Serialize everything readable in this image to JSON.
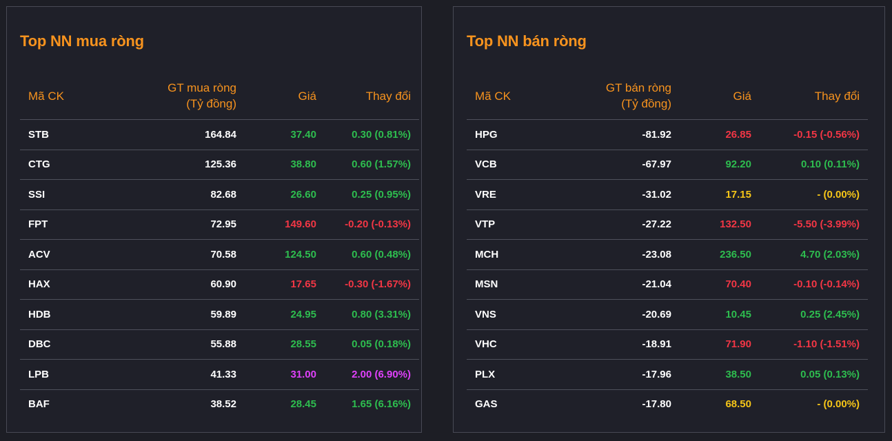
{
  "buy_panel": {
    "title": "Top NN mua ròng",
    "headers": {
      "code": "Mã CK",
      "value_line1": "GT mua ròng",
      "value_line2": "(Tỷ đồng)",
      "price": "Giá",
      "change": "Thay đổi"
    },
    "rows": [
      {
        "code": "STB",
        "value": "164.84",
        "price": "37.40",
        "change": "0.30 (0.81%)",
        "status": "up"
      },
      {
        "code": "CTG",
        "value": "125.36",
        "price": "38.80",
        "change": "0.60 (1.57%)",
        "status": "up"
      },
      {
        "code": "SSI",
        "value": "82.68",
        "price": "26.60",
        "change": "0.25 (0.95%)",
        "status": "up"
      },
      {
        "code": "FPT",
        "value": "72.95",
        "price": "149.60",
        "change": "-0.20 (-0.13%)",
        "status": "down"
      },
      {
        "code": "ACV",
        "value": "70.58",
        "price": "124.50",
        "change": "0.60 (0.48%)",
        "status": "up"
      },
      {
        "code": "HAX",
        "value": "60.90",
        "price": "17.65",
        "change": "-0.30 (-1.67%)",
        "status": "down"
      },
      {
        "code": "HDB",
        "value": "59.89",
        "price": "24.95",
        "change": "0.80 (3.31%)",
        "status": "up"
      },
      {
        "code": "DBC",
        "value": "55.88",
        "price": "28.55",
        "change": "0.05 (0.18%)",
        "status": "up"
      },
      {
        "code": "LPB",
        "value": "41.33",
        "price": "31.00",
        "change": "2.00 (6.90%)",
        "status": "ceil"
      },
      {
        "code": "BAF",
        "value": "38.52",
        "price": "28.45",
        "change": "1.65 (6.16%)",
        "status": "up"
      }
    ]
  },
  "sell_panel": {
    "title": "Top NN bán ròng",
    "headers": {
      "code": "Mã CK",
      "value_line1": "GT bán ròng",
      "value_line2": "(Tỷ đồng)",
      "price": "Giá",
      "change": "Thay đổi"
    },
    "rows": [
      {
        "code": "HPG",
        "value": "-81.92",
        "price": "26.85",
        "change": "-0.15 (-0.56%)",
        "status": "down"
      },
      {
        "code": "VCB",
        "value": "-67.97",
        "price": "92.20",
        "change": "0.10 (0.11%)",
        "status": "up"
      },
      {
        "code": "VRE",
        "value": "-31.02",
        "price": "17.15",
        "change": "- (0.00%)",
        "status": "ref"
      },
      {
        "code": "VTP",
        "value": "-27.22",
        "price": "132.50",
        "change": "-5.50 (-3.99%)",
        "status": "down"
      },
      {
        "code": "MCH",
        "value": "-23.08",
        "price": "236.50",
        "change": "4.70 (2.03%)",
        "status": "up"
      },
      {
        "code": "MSN",
        "value": "-21.04",
        "price": "70.40",
        "change": "-0.10 (-0.14%)",
        "status": "down"
      },
      {
        "code": "VNS",
        "value": "-20.69",
        "price": "10.45",
        "change": "0.25 (2.45%)",
        "status": "up"
      },
      {
        "code": "VHC",
        "value": "-18.91",
        "price": "71.90",
        "change": "-1.10 (-1.51%)",
        "status": "down"
      },
      {
        "code": "PLX",
        "value": "-17.96",
        "price": "38.50",
        "change": "0.05 (0.13%)",
        "status": "up"
      },
      {
        "code": "GAS",
        "value": "-17.80",
        "price": "68.50",
        "change": "- (0.00%)",
        "status": "ref"
      }
    ]
  },
  "colors": {
    "background": "#1d1e25",
    "accent": "#f7931e",
    "up": "#2ebd4f",
    "down": "#f23645",
    "reference": "#f5c518",
    "ceiling": "#e040fb"
  }
}
